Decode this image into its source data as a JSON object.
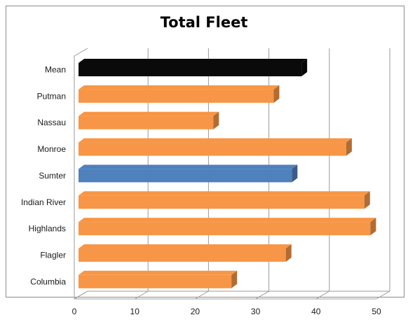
{
  "chart_data": {
    "type": "bar",
    "orientation": "horizontal",
    "title": "Total Fleet",
    "categories": [
      "Mean",
      "Putman",
      "Nassau",
      "Monroe",
      "Sumter",
      "Indian River",
      "Highlands",
      "Flagler",
      "Columbia"
    ],
    "values": [
      37.6,
      33,
      23,
      45,
      36,
      48,
      49,
      35,
      26
    ],
    "colors": [
      "#0a0a0a",
      "#f79646",
      "#f79646",
      "#f79646",
      "#4f81bd",
      "#f79646",
      "#f79646",
      "#f79646",
      "#f79646"
    ],
    "xlim": [
      0,
      50
    ],
    "xticks": [
      0,
      10,
      20,
      30,
      40,
      50
    ],
    "grid": true,
    "style": "3d"
  }
}
